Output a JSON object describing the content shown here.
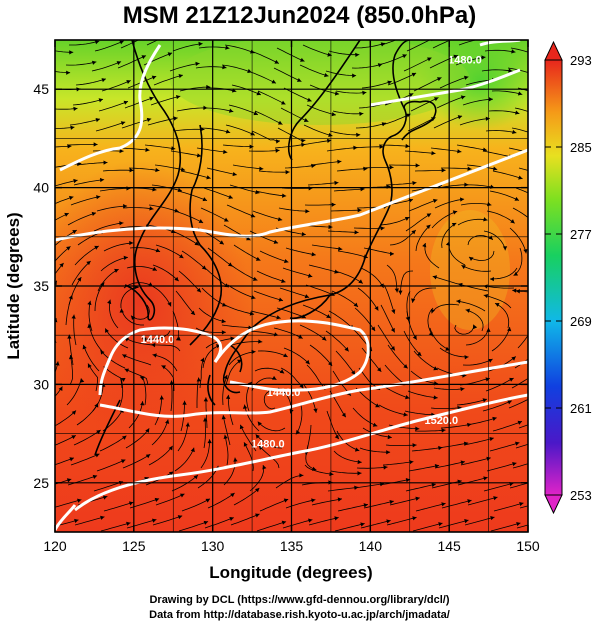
{
  "title": "MSM 21Z12Jun2024 (850.0hPa)",
  "map": {
    "lon_range": [
      120,
      150
    ],
    "lat_range": [
      22.5,
      47.5
    ],
    "xticks": [
      120,
      125,
      130,
      135,
      140,
      145,
      150
    ],
    "yticks": [
      25,
      30,
      35,
      40,
      45
    ],
    "grid_lon": [
      125,
      127.5,
      130,
      132.5,
      135,
      137.5,
      140,
      142.5,
      145,
      147.5
    ],
    "grid_lat": [
      25,
      27.5,
      30,
      32.5,
      35,
      37.5,
      40,
      42.5,
      45
    ],
    "xlabel": "Longitude (degrees)",
    "ylabel": "Latitude  (degrees)",
    "contour_labels": [
      {
        "text": "1440.0",
        "lon": 126.5,
        "lat": 32.1
      },
      {
        "text": "1440.0",
        "lon": 134.5,
        "lat": 29.4
      },
      {
        "text": "1480.0",
        "lon": 133.5,
        "lat": 26.8
      },
      {
        "text": "1520.0",
        "lon": 144.5,
        "lat": 28.0
      },
      {
        "text": "1480.0",
        "lon": 146.0,
        "lat": 46.3
      }
    ]
  },
  "colorbar": {
    "min": 253,
    "max": 293,
    "tick_labels": [
      "293",
      "285",
      "277",
      "269",
      "261",
      "253"
    ],
    "tick_values": [
      293,
      285,
      277,
      269,
      261,
      253
    ]
  },
  "credits": {
    "line1": "Drawing by DCL (https://www.gfd-dennou.org/library/dcl/)",
    "line2": "Data from http://database.rish.kyoto-u.ac.jp/arch/jmadata/"
  }
}
